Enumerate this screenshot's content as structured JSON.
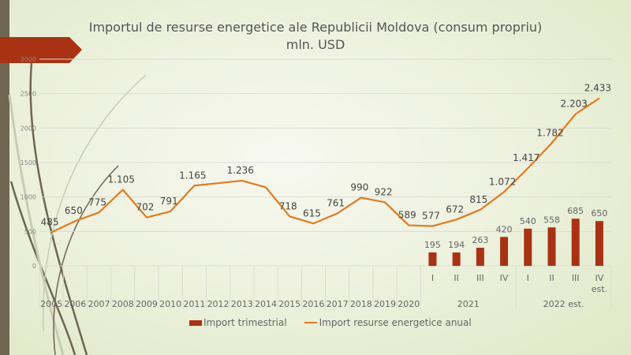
{
  "slide": {
    "title_line1": "Importul de resurse energetice  ale Republicii Moldova (consum propriu)",
    "title_line2": "mln. USD"
  },
  "legend": {
    "bar_label": "Import trimestrial",
    "line_label": "Import resurse energetice anual"
  },
  "colors": {
    "bar": "#a83213",
    "line": "#e07b20",
    "banner": "#a83213",
    "sidebar": "#6e6650"
  },
  "chart_data": {
    "type": "bar+line",
    "title": "Importul de resurse energetice  ale Republicii Moldova (consum propriu) mln. USD",
    "xlabel": "",
    "ylabel": "",
    "ylim": [
      0,
      3000
    ],
    "yticks": [
      0,
      500,
      1000,
      1500,
      2000,
      2500,
      3000
    ],
    "grid": true,
    "legend_position": "bottom",
    "categories": [
      "2005",
      "2006",
      "2007",
      "2008",
      "2009",
      "2010",
      "2011",
      "2012",
      "2013",
      "2014",
      "2015",
      "2016",
      "2017",
      "2018",
      "2019",
      "2020",
      "I",
      "II",
      "III",
      "IV",
      "I",
      "II",
      "III",
      "IV est."
    ],
    "group_labels": [
      {
        "label": "2021",
        "from": 16,
        "to": 19
      },
      {
        "label": "2022 est.",
        "from": 20,
        "to": 23
      }
    ],
    "series": [
      {
        "name": "Import resurse energetice anual",
        "type": "line",
        "values": [
          485,
          650,
          775,
          1105,
          702,
          791,
          1165,
          1200,
          1236,
          1140,
          718,
          615,
          761,
          990,
          922,
          589,
          577,
          672,
          815,
          1072,
          1417,
          1782,
          2203,
          2433
        ],
        "labels": [
          "485",
          "650",
          "775",
          "1.105",
          "702",
          "791",
          "1.165",
          "",
          "1.236",
          "",
          "718",
          "615",
          "761",
          "990",
          "922",
          "589",
          "577",
          "672",
          "815",
          "1.072",
          "1.417",
          "1.782",
          "2.203",
          "2.433"
        ]
      },
      {
        "name": "Import trimestrial",
        "type": "bar",
        "values": [
          null,
          null,
          null,
          null,
          null,
          null,
          null,
          null,
          null,
          null,
          null,
          null,
          null,
          null,
          null,
          null,
          195,
          194,
          263,
          420,
          540,
          558,
          685,
          650
        ],
        "labels": [
          "",
          "",
          "",
          "",
          "",
          "",
          "",
          "",
          "",
          "",
          "",
          "",
          "",
          "",
          "",
          "",
          "195",
          "194",
          "263",
          "420",
          "540",
          "558",
          "685",
          "650"
        ]
      }
    ]
  }
}
